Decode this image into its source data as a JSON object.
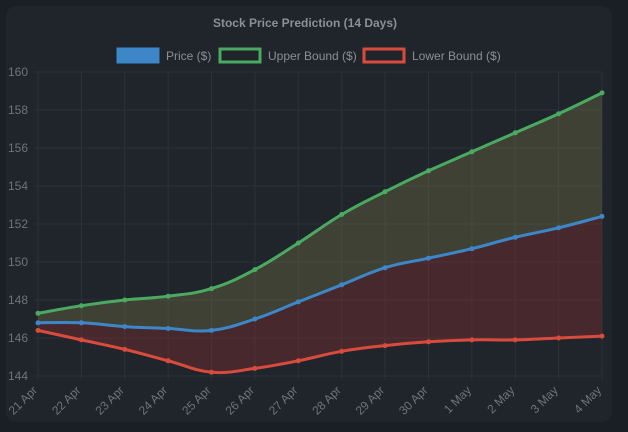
{
  "chart_data": {
    "type": "line",
    "title": "Stock Price Prediction (14 Days)",
    "xlabel": "",
    "ylabel": "",
    "categories": [
      "21 Apr",
      "22 Apr",
      "23 Apr",
      "24 Apr",
      "25 Apr",
      "26 Apr",
      "27 Apr",
      "28 Apr",
      "29 Apr",
      "30 Apr",
      "1 May",
      "2 May",
      "3 May",
      "4 May"
    ],
    "ylim": [
      144,
      160
    ],
    "yticks": [
      144,
      146,
      148,
      150,
      152,
      154,
      156,
      158,
      160
    ],
    "grid": true,
    "legend_position": "top",
    "series": [
      {
        "name": "Price ($)",
        "color": "#3d87c9",
        "fill": false,
        "values": [
          146.8,
          146.8,
          146.6,
          146.5,
          146.4,
          147.0,
          147.9,
          148.8,
          149.7,
          150.2,
          150.7,
          151.3,
          151.8,
          152.4
        ]
      },
      {
        "name": "Upper Bound ($)",
        "color": "#4aaa62",
        "fill": true,
        "fill_color": "rgba(128,128,72,0.32)",
        "values": [
          147.3,
          147.7,
          148.0,
          148.2,
          148.6,
          149.6,
          151.0,
          152.5,
          153.7,
          154.8,
          155.8,
          156.8,
          157.8,
          158.9
        ]
      },
      {
        "name": "Lower Bound ($)",
        "color": "#d94b3c",
        "fill": true,
        "fill_color": "rgba(140,48,50,0.36)",
        "values": [
          146.4,
          145.9,
          145.4,
          144.8,
          144.2,
          144.4,
          144.8,
          145.3,
          145.6,
          145.8,
          145.9,
          145.9,
          146.0,
          146.1
        ]
      }
    ]
  }
}
